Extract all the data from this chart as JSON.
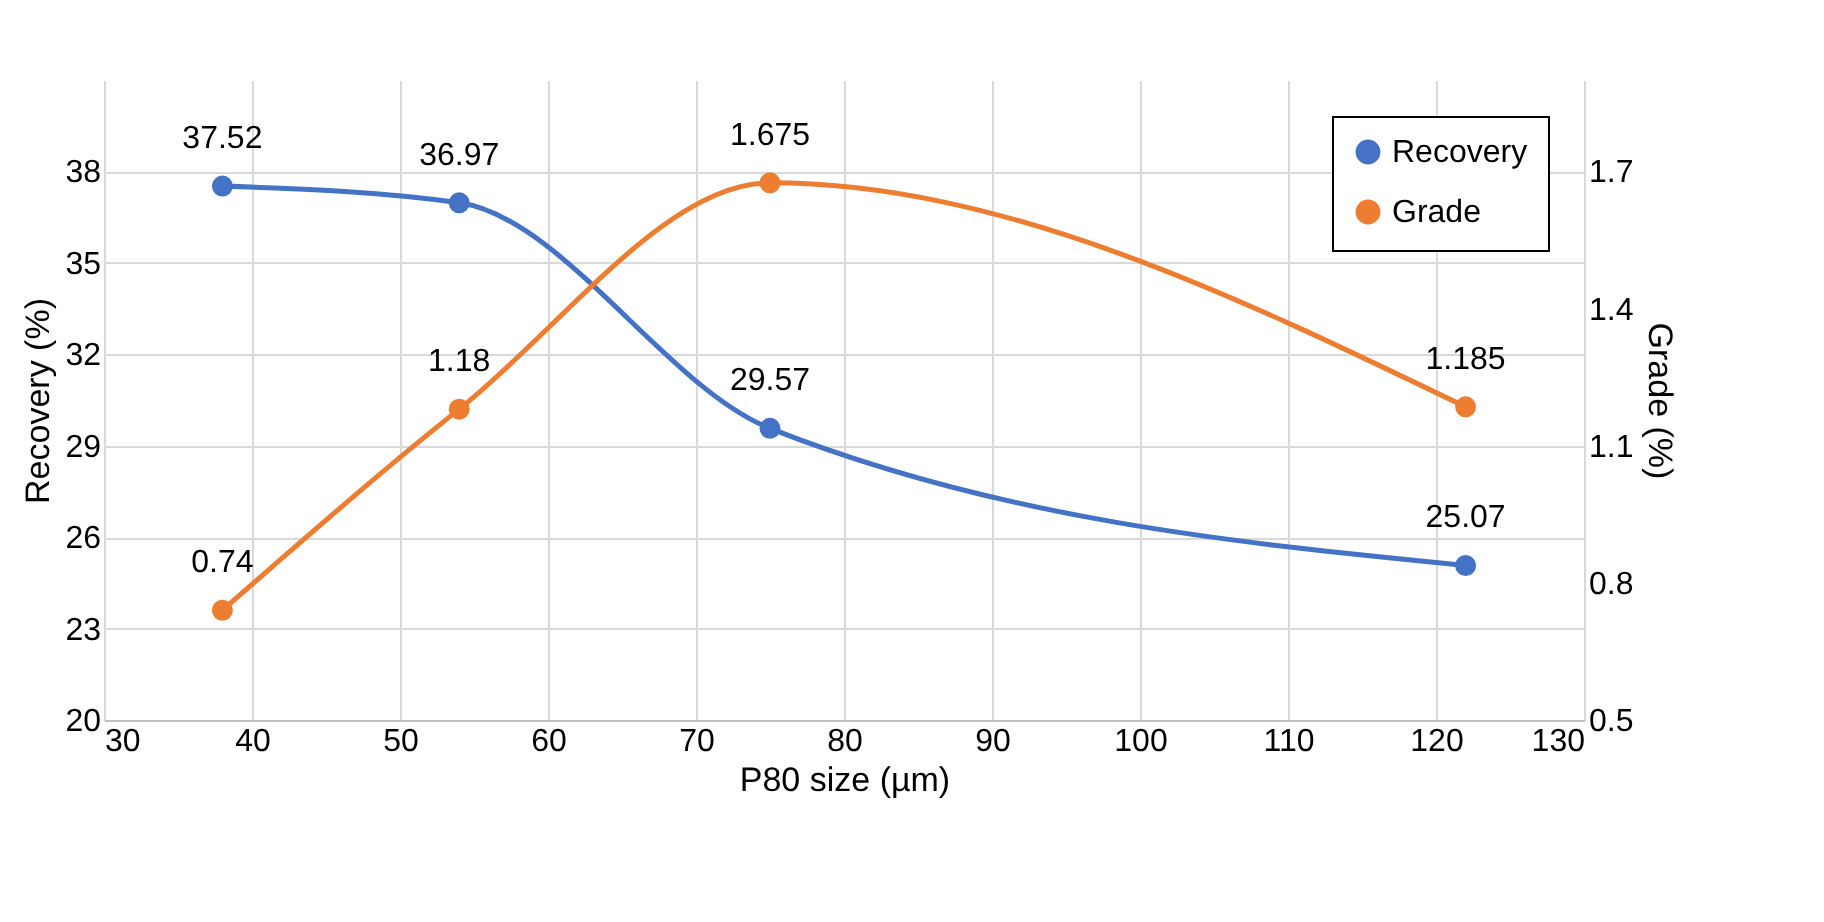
{
  "chart_data": {
    "type": "line",
    "xlabel": "P80 size (µm)",
    "ylabel": "Recovery (%)",
    "y2label": "Grade (%)",
    "x": [
      38,
      54,
      75,
      122
    ],
    "series": [
      {
        "name": "Recovery",
        "color": "#4472c4",
        "values": [
          37.52,
          36.97,
          29.57,
          25.07
        ]
      },
      {
        "name": "Grade",
        "color": "#ed7d31",
        "values": [
          0.74,
          1.18,
          1.675,
          1.185
        ],
        "axis": "y2"
      }
    ],
    "xlim": [
      30,
      130
    ],
    "xticks": [
      30,
      40,
      50,
      60,
      70,
      80,
      90,
      100,
      110,
      120,
      130
    ],
    "ylim": [
      20,
      41
    ],
    "yticks": [
      20,
      23,
      26,
      29,
      32,
      35,
      38
    ],
    "y2lim": [
      0.5,
      1.9
    ],
    "y2ticks": [
      0.5,
      0.8,
      1.1,
      1.4,
      1.7
    ],
    "grid": true,
    "legend": "top right",
    "marker": "circle",
    "line_style": "solid",
    "data_labels": true
  }
}
